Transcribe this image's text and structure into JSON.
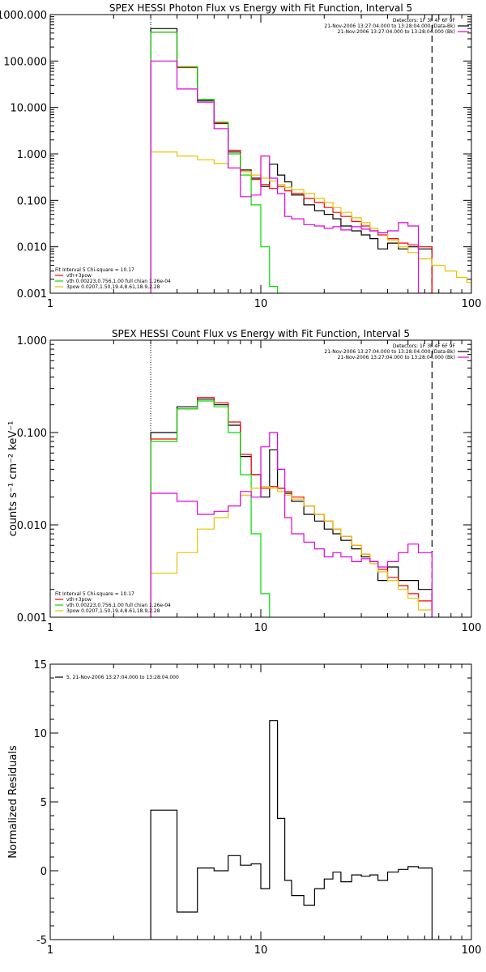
{
  "chart_data": [
    {
      "id": "photon",
      "type": "line",
      "title": "SPEX HESSI Photon Flux vs Energy with Fit Function, Interval 5",
      "xscale": "log",
      "yscale": "log",
      "xlim": [
        1,
        100
      ],
      "ylim": [
        0.001,
        1000
      ],
      "xticks": [
        {
          "v": 1,
          "label": "1"
        },
        {
          "v": 10,
          "label": "10"
        },
        {
          "v": 100,
          "label": "100"
        }
      ],
      "yticks": [
        {
          "v": 0.001,
          "label": "0.001"
        },
        {
          "v": 0.01,
          "label": "0.010"
        },
        {
          "v": 0.1,
          "label": "0.100"
        },
        {
          "v": 1,
          "label": "1.000"
        },
        {
          "v": 10,
          "label": "10.000"
        },
        {
          "v": 100,
          "label": "100.000"
        },
        {
          "v": 1000,
          "label": "1000.000"
        }
      ],
      "dotted_x": 3,
      "dashed_x": 65,
      "info_lines": [
        "Detectors: 1F 3F 4F 6F 9F",
        "21-Nov-2006 13:27:04.000 to 13:28:04.000 (Data-Bk)",
        "21-Nov-2006 13:27:04.000 to 13:28:04.000 (Bk)"
      ],
      "info_colors": [
        "",
        "#000000",
        "#e000e0"
      ],
      "legend_lines": [
        "Fit Interval 5   Chi-square = 10.17",
        "vth+3pow",
        "vth 0.00223,0.756,1.00  full chian 1.26e-04",
        "3pow 0.0207,1.50,19.4,8.61,18.9,2.28"
      ],
      "legend_colors": [
        "",
        "#ff0000",
        "#00dd00",
        "#e6c200"
      ],
      "series": [
        {
          "color": "#000000",
          "step": true,
          "edges": [
            3,
            4,
            5,
            6,
            7,
            8,
            9,
            10,
            11,
            12,
            13,
            14,
            16,
            18,
            20,
            22,
            24,
            27,
            30,
            33,
            36,
            40,
            45,
            50,
            56,
            65
          ],
          "values": [
            500,
            75,
            14,
            4.5,
            1.1,
            0.45,
            0.3,
            0.2,
            0.6,
            0.35,
            0.25,
            0.13,
            0.08,
            0.06,
            0.05,
            0.04,
            0.028,
            0.022,
            0.018,
            0.015,
            0.009,
            0.012,
            0.009,
            0.01,
            0.009
          ]
        },
        {
          "color": "#ff0000",
          "step": true,
          "edges": [
            3,
            4,
            5,
            6,
            7,
            8,
            9,
            10,
            11,
            12,
            13,
            14,
            16,
            18,
            20,
            22,
            24,
            27,
            30,
            33,
            36,
            40,
            45,
            50,
            56,
            65
          ],
          "values": [
            420,
            72,
            15,
            4.6,
            1.2,
            0.42,
            0.28,
            0.22,
            0.18,
            0.2,
            0.16,
            0.14,
            0.11,
            0.09,
            0.07,
            0.055,
            0.045,
            0.035,
            0.028,
            0.022,
            0.018,
            0.015,
            0.012,
            0.011,
            0.01
          ]
        },
        {
          "color": "#00dd00",
          "step": true,
          "edges": [
            3,
            4,
            5,
            6,
            7,
            8,
            9,
            10,
            11,
            12,
            13
          ],
          "values": [
            420,
            75,
            15,
            4.8,
            1.0,
            0.35,
            0.08,
            0.01,
            0.0014,
            0.001
          ]
        },
        {
          "color": "#e6c200",
          "step": true,
          "edges": [
            3,
            4,
            5,
            6,
            7,
            8,
            9,
            10,
            11,
            12,
            13,
            14,
            16,
            18,
            20,
            22,
            24,
            27,
            30,
            33,
            36,
            40,
            45,
            50,
            56,
            65,
            75,
            85,
            95,
            100
          ],
          "values": [
            1.1,
            0.9,
            0.75,
            0.62,
            0.5,
            0.42,
            0.35,
            0.3,
            0.26,
            0.22,
            0.19,
            0.17,
            0.14,
            0.11,
            0.09,
            0.07,
            0.055,
            0.042,
            0.033,
            0.025,
            0.02,
            0.014,
            0.01,
            0.0075,
            0.0055,
            0.004,
            0.003,
            0.0022,
            0.0017
          ]
        },
        {
          "color": "#e000e0",
          "step": true,
          "edges": [
            3,
            4,
            5,
            6,
            7,
            8,
            9,
            10,
            11,
            12,
            13,
            14,
            16,
            18,
            20,
            22,
            24,
            27,
            30,
            33,
            36,
            40,
            45,
            50,
            56,
            65
          ],
          "values": [
            100,
            25,
            13,
            3.5,
            0.5,
            0.12,
            0.13,
            0.9,
            0.3,
            0.14,
            0.045,
            0.04,
            0.03,
            0.028,
            0.025,
            0.027,
            0.023,
            0.027,
            0.024,
            0.022,
            0.02,
            0.022,
            0.033,
            0.028,
            0.001
          ]
        }
      ]
    },
    {
      "id": "count",
      "type": "line",
      "title": "SPEX HESSI Count Flux vs Energy with Fit Function, Interval 5",
      "ylabel": "counts s⁻¹ cm⁻² keV⁻¹",
      "xscale": "log",
      "yscale": "log",
      "xlim": [
        1,
        100
      ],
      "ylim": [
        0.001,
        1
      ],
      "xticks": [
        {
          "v": 1,
          "label": "1"
        },
        {
          "v": 10,
          "label": "10"
        },
        {
          "v": 100,
          "label": "100"
        }
      ],
      "yticks": [
        {
          "v": 0.001,
          "label": "0.001"
        },
        {
          "v": 0.01,
          "label": "0.010"
        },
        {
          "v": 0.1,
          "label": "0.100"
        },
        {
          "v": 1,
          "label": "1.000"
        }
      ],
      "dotted_x": 3,
      "dashed_x": 65,
      "info_lines": [
        "Detectors: 1F 3F 4F 6F 9F",
        "21-Nov-2006 13:27:04.000 to 13:28:04.000 (Data-Bk)",
        "21-Nov-2006 13:27:04.000 to 13:28:04.000 (Bk)"
      ],
      "info_colors": [
        "",
        "#000000",
        "#e000e0"
      ],
      "legend_lines": [
        "Fit Interval 5   Chi-square = 10.17",
        "vth+3pow",
        "vth 0.00223,0.756,1.00  full chian 1.26e-04",
        "3pow 0.0207,1.50,19.4,8.61,18.9,2.28"
      ],
      "legend_colors": [
        "",
        "#ff0000",
        "#00dd00",
        "#e6c200"
      ],
      "series": [
        {
          "color": "#000000",
          "step": true,
          "edges": [
            3,
            4,
            5,
            6,
            7,
            8,
            9,
            10,
            11,
            12,
            13,
            14,
            16,
            18,
            20,
            22,
            24,
            27,
            30,
            33,
            36,
            40,
            45,
            50,
            56,
            65
          ],
          "values": [
            0.1,
            0.19,
            0.23,
            0.2,
            0.12,
            0.055,
            0.035,
            0.02,
            0.065,
            0.025,
            0.022,
            0.018,
            0.013,
            0.011,
            0.009,
            0.008,
            0.0068,
            0.0055,
            0.0045,
            0.004,
            0.0025,
            0.0035,
            0.0025,
            0.0025,
            0.002
          ]
        },
        {
          "color": "#ff0000",
          "step": true,
          "edges": [
            3,
            4,
            5,
            6,
            7,
            8,
            9,
            10,
            11,
            12,
            13,
            14,
            16,
            18,
            20,
            22,
            24,
            27,
            30,
            33,
            36,
            40,
            45,
            50,
            56,
            65
          ],
          "values": [
            0.085,
            0.18,
            0.24,
            0.21,
            0.13,
            0.058,
            0.035,
            0.025,
            0.026,
            0.025,
            0.023,
            0.02,
            0.016,
            0.013,
            0.011,
            0.009,
            0.0075,
            0.006,
            0.0048,
            0.004,
            0.0033,
            0.0027,
            0.0022,
            0.0018,
            0.0015
          ]
        },
        {
          "color": "#00dd00",
          "step": true,
          "edges": [
            3,
            4,
            5,
            6,
            7,
            8,
            9,
            10,
            11
          ],
          "values": [
            0.08,
            0.18,
            0.22,
            0.19,
            0.1,
            0.035,
            0.008,
            0.0018
          ]
        },
        {
          "color": "#e6c200",
          "step": true,
          "edges": [
            3,
            4,
            5,
            6,
            7,
            8,
            9,
            10,
            11,
            12,
            13,
            14,
            16,
            18,
            20,
            22,
            24,
            27,
            30,
            33,
            36,
            40,
            45,
            50,
            56,
            65
          ],
          "values": [
            0.003,
            0.005,
            0.009,
            0.012,
            0.016,
            0.021,
            0.025,
            0.026,
            0.025,
            0.023,
            0.021,
            0.019,
            0.016,
            0.013,
            0.011,
            0.009,
            0.0075,
            0.006,
            0.0048,
            0.0038,
            0.0031,
            0.0025,
            0.002,
            0.0016,
            0.0012
          ]
        },
        {
          "color": "#e000e0",
          "step": true,
          "edges": [
            3,
            4,
            5,
            6,
            7,
            8,
            9,
            10,
            11,
            12,
            13,
            14,
            16,
            18,
            20,
            22,
            24,
            27,
            30,
            33,
            36,
            40,
            45,
            50,
            56,
            65
          ],
          "values": [
            0.022,
            0.018,
            0.013,
            0.014,
            0.016,
            0.023,
            0.02,
            0.07,
            0.1,
            0.04,
            0.012,
            0.008,
            0.0065,
            0.0055,
            0.0045,
            0.005,
            0.0045,
            0.004,
            0.0043,
            0.004,
            0.0035,
            0.004,
            0.005,
            0.0062,
            0.005
          ]
        }
      ]
    },
    {
      "id": "resid",
      "type": "line",
      "ylabel": "Normalized Residuals",
      "xscale": "log",
      "yscale": "linear",
      "xlim": [
        1,
        100
      ],
      "ylim": [
        -5,
        15
      ],
      "xticks": [
        {
          "v": 1,
          "label": "1"
        },
        {
          "v": 10,
          "label": "10"
        },
        {
          "v": 100,
          "label": "100"
        }
      ],
      "yticks": [
        {
          "v": -5,
          "label": "-5"
        },
        {
          "v": 0,
          "label": "0"
        },
        {
          "v": 5,
          "label": "5"
        },
        {
          "v": 10,
          "label": "10"
        },
        {
          "v": 15,
          "label": "15"
        }
      ],
      "legend_lines": [
        "5, 21-Nov-2006 13:27:04.000 to 13:28:04.000"
      ],
      "legend_colors": [
        "#000000"
      ],
      "series": [
        {
          "color": "#000000",
          "step": true,
          "edges": [
            3,
            4,
            5,
            6,
            7,
            8,
            9,
            10,
            11,
            12,
            13,
            14,
            16,
            18,
            20,
            22,
            24,
            27,
            30,
            33,
            36,
            40,
            45,
            50,
            56,
            65
          ],
          "values": [
            4.4,
            -3.0,
            0.2,
            0.0,
            1.1,
            0.4,
            0.5,
            -1.3,
            10.9,
            3.8,
            -0.7,
            -1.8,
            -2.5,
            -1.3,
            -0.6,
            -0.1,
            -0.8,
            -0.3,
            -0.4,
            -0.3,
            -0.7,
            -0.1,
            0.1,
            0.3,
            0.2
          ]
        }
      ]
    }
  ]
}
